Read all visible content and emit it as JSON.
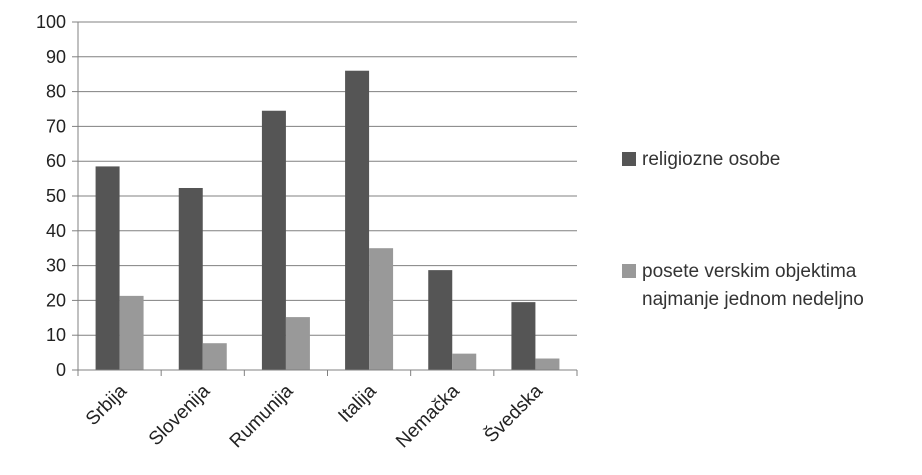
{
  "chart_data": {
    "type": "bar",
    "categories": [
      "Srbija",
      "Slovenija",
      "Rumunija",
      "Italija",
      "Nemačka",
      "Švedska"
    ],
    "series": [
      {
        "name": "religiozne osobe",
        "color": "#555555",
        "values": [
          58.5,
          52.3,
          74.5,
          86,
          28.7,
          19.5
        ]
      },
      {
        "name": "posete verskim objektima najmanje jednom nedeljno",
        "color": "#999999",
        "values": [
          21.3,
          7.7,
          15.2,
          35,
          4.7,
          3.3
        ]
      }
    ],
    "title": "",
    "xlabel": "",
    "ylabel": "",
    "ylim": [
      0,
      100
    ],
    "yticks": [
      0,
      10,
      20,
      30,
      40,
      50,
      60,
      70,
      80,
      90,
      100
    ],
    "grid": true,
    "legend": "right"
  }
}
